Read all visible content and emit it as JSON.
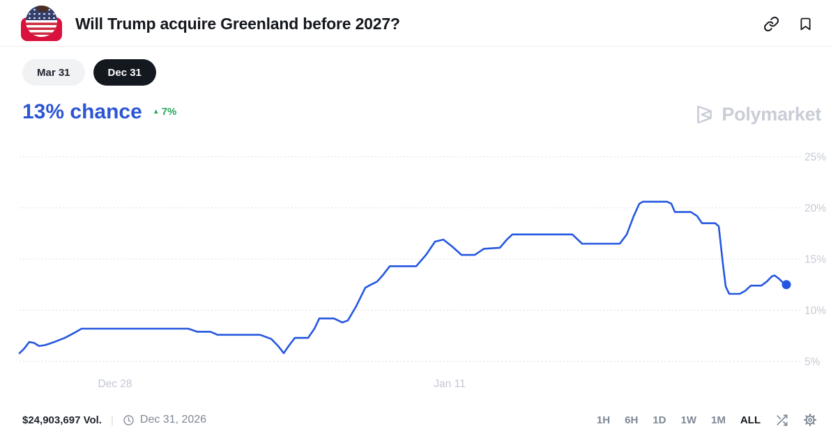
{
  "header": {
    "title": "Will Trump acquire Greenland before 2027?",
    "icons": [
      "link-icon",
      "bookmark-icon"
    ],
    "avatar": "us-flag-market-icon"
  },
  "tabs": [
    {
      "label": "Mar 31",
      "active": false
    },
    {
      "label": "Dec 31",
      "active": true
    }
  ],
  "chance": {
    "value": "13% chance",
    "change": "7%",
    "direction": "up",
    "accent_color": "#2b55d3",
    "change_color": "#27a95d"
  },
  "watermark": {
    "label": "Polymarket",
    "color": "#c9cdd6"
  },
  "chart_data": {
    "type": "line",
    "title": "Will Trump acquire Greenland before 2027?",
    "outcome": "Dec 31",
    "current_value_pct": 13,
    "change_pct": 7,
    "ylabel": "chance (%)",
    "ylim": [
      4,
      26
    ],
    "grid": "dotted-horizontal",
    "legend": "none",
    "line_color": "#2456e0",
    "grid_color": "#dadde2",
    "y_tick_color": "#c5cad4",
    "x_tick_color": "#c2c7d1",
    "y_ticks": [
      {
        "pct": 25,
        "label": "25%"
      },
      {
        "pct": 20,
        "label": "20%"
      },
      {
        "pct": 15,
        "label": "15%"
      },
      {
        "pct": 10,
        "label": "10%"
      },
      {
        "pct": 5,
        "label": "5%"
      }
    ],
    "x_ticks": [
      {
        "label": "Dec 28",
        "x": 165
      },
      {
        "label": "Jan 11",
        "x": 645
      }
    ],
    "series": [
      {
        "name": "Dec 31",
        "end_dot": true,
        "points": [
          [
            28,
            5.8
          ],
          [
            34,
            6.2
          ],
          [
            42,
            6.9
          ],
          [
            49,
            6.8
          ],
          [
            56,
            6.5
          ],
          [
            65,
            6.6
          ],
          [
            78,
            6.9
          ],
          [
            93,
            7.3
          ],
          [
            107,
            7.8
          ],
          [
            117,
            8.2
          ],
          [
            270,
            8.2
          ],
          [
            283,
            7.9
          ],
          [
            302,
            7.9
          ],
          [
            312,
            7.6
          ],
          [
            373,
            7.6
          ],
          [
            389,
            7.2
          ],
          [
            399,
            6.5
          ],
          [
            407,
            5.8
          ],
          [
            414,
            6.5
          ],
          [
            423,
            7.3
          ],
          [
            442,
            7.3
          ],
          [
            451,
            8.2
          ],
          [
            458,
            9.2
          ],
          [
            479,
            9.2
          ],
          [
            491,
            8.8
          ],
          [
            499,
            9.0
          ],
          [
            511,
            10.4
          ],
          [
            524,
            12.2
          ],
          [
            532,
            12.5
          ],
          [
            541,
            12.8
          ],
          [
            550,
            13.5
          ],
          [
            559,
            14.3
          ],
          [
            597,
            14.3
          ],
          [
            611,
            15.4
          ],
          [
            624,
            16.7
          ],
          [
            636,
            16.9
          ],
          [
            649,
            16.2
          ],
          [
            662,
            15.4
          ],
          [
            681,
            15.4
          ],
          [
            694,
            16.0
          ],
          [
            717,
            16.1
          ],
          [
            727,
            16.9
          ],
          [
            735,
            17.4
          ],
          [
            821,
            17.4
          ],
          [
            835,
            16.5
          ],
          [
            889,
            16.5
          ],
          [
            899,
            17.4
          ],
          [
            909,
            19.2
          ],
          [
            917,
            20.4
          ],
          [
            922,
            20.6
          ],
          [
            957,
            20.6
          ],
          [
            963,
            20.4
          ],
          [
            968,
            19.6
          ],
          [
            991,
            19.6
          ],
          [
            1000,
            19.2
          ],
          [
            1007,
            18.5
          ],
          [
            1026,
            18.5
          ],
          [
            1031,
            18.2
          ],
          [
            1037,
            14.5
          ],
          [
            1041,
            12.3
          ],
          [
            1046,
            11.6
          ],
          [
            1061,
            11.6
          ],
          [
            1069,
            11.9
          ],
          [
            1077,
            12.4
          ],
          [
            1092,
            12.4
          ],
          [
            1100,
            12.8
          ],
          [
            1107,
            13.3
          ],
          [
            1111,
            13.4
          ],
          [
            1117,
            13.1
          ],
          [
            1123,
            12.7
          ],
          [
            1128,
            12.5
          ]
        ]
      }
    ]
  },
  "footer": {
    "volume": "$24,903,697 Vol.",
    "separator": "|",
    "date": "Dec 31, 2026",
    "ranges": [
      "1H",
      "6H",
      "1D",
      "1W",
      "1M",
      "ALL"
    ],
    "active_range": "ALL",
    "icons": [
      "shuffle-icon",
      "gear-icon"
    ]
  }
}
